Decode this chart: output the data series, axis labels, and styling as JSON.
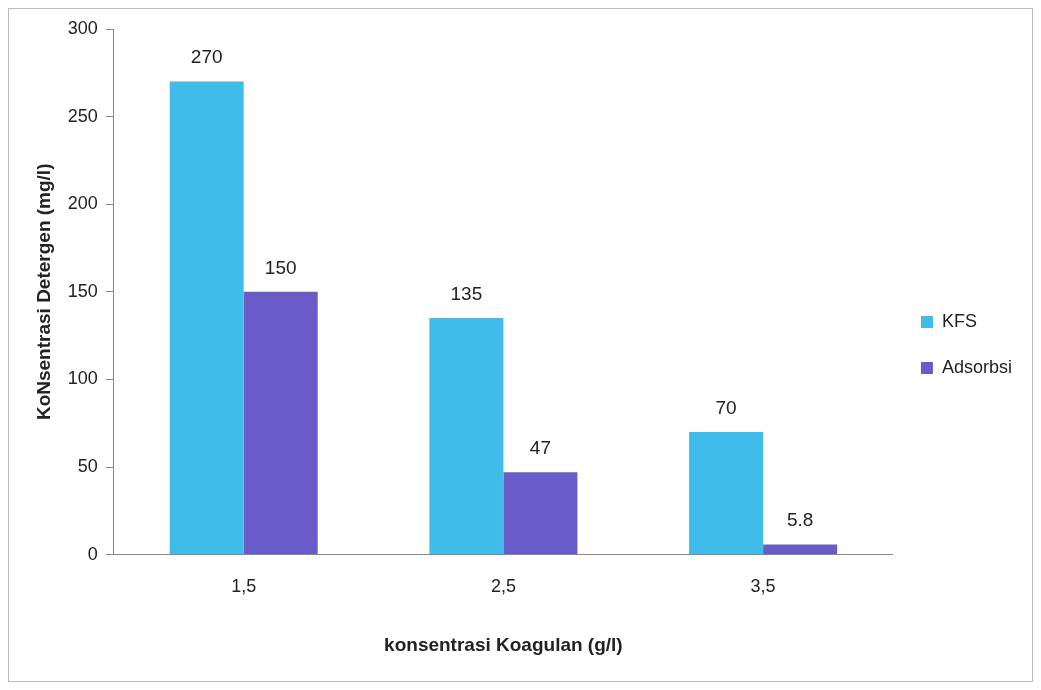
{
  "chart_data": {
    "type": "bar",
    "xlabel": "konsentrasi Koagulan (g/l)",
    "ylabel": "KoNsentrasi Detergen (mg/l)",
    "categories": [
      "1,5",
      "2,5",
      "3,5"
    ],
    "series": [
      {
        "name": "KFS",
        "color": "#3fbcea",
        "values": [
          270,
          135,
          70
        ]
      },
      {
        "name": "Adsorbsi",
        "color": "#6a5cc8",
        "values": [
          150,
          47,
          5.8
        ]
      }
    ],
    "ylim": [
      0,
      300
    ],
    "yticks": [
      0,
      50,
      100,
      150,
      200,
      250,
      300
    ],
    "grid": false,
    "legend": "right",
    "data_labels": true
  }
}
